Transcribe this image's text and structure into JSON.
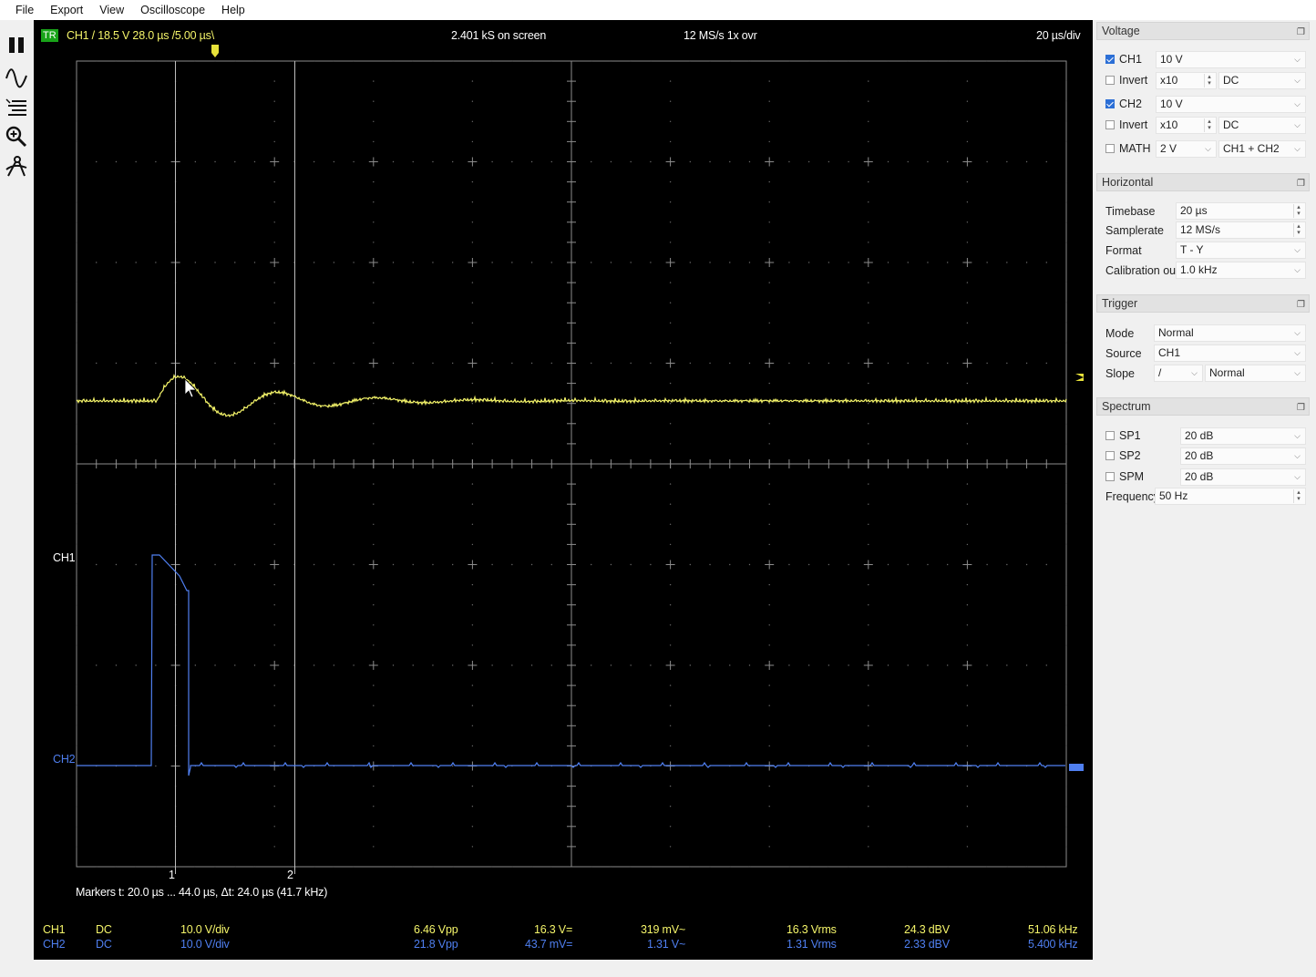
{
  "menu": [
    "File",
    "Export",
    "View",
    "Oscilloscope",
    "Help"
  ],
  "toolbar": {
    "icons": [
      "pause-icon",
      "waveform-icon",
      "lines-icon",
      "zoom-icon",
      "measure-icon"
    ]
  },
  "scope": {
    "trigger_badge": "TR",
    "trigger_info": "CH1  /  18.5 V  28.0 µs  /5.00 µs\\",
    "samples_on_screen": "2.401 kS on screen",
    "samplerate_info": "12 MS/s 1x ovr",
    "timebase_info": "20 µs/div",
    "ch1_label": "CH1",
    "ch2_label": "CH2",
    "marker1": "1",
    "marker2": "2",
    "markers_text": "Markers   t: 20.0 µs ... 44.0 µs,  Δt: 24.0 µs (41.7 kHz)",
    "colors": {
      "ch1": "#f5f56a",
      "ch2": "#4f7ff0",
      "grid": "#8c8c8c",
      "trigger_badge": "#19a319"
    }
  },
  "measurements": {
    "ch1": {
      "name": "CH1",
      "coupling": "DC",
      "vdiv": "10.0 V/div",
      "vpp": "6.46 Vpp",
      "vdc": "16.3 V=",
      "vac": "319 mV~",
      "vrms": "16.3 Vrms",
      "dbv": "24.3 dBV",
      "freq": "51.06 kHz"
    },
    "ch2": {
      "name": "CH2",
      "coupling": "DC",
      "vdiv": "10.0 V/div",
      "vpp": "21.8 Vpp",
      "vdc": "43.7 mV=",
      "vac": "1.31 V~",
      "vrms": "1.31 Vrms",
      "dbv": "2.33 dBV",
      "freq": "5.400 kHz"
    }
  },
  "panel": {
    "voltage": {
      "title": "Voltage",
      "ch1": {
        "label": "CH1",
        "checked": true,
        "range": "10 V",
        "invert_label": "Invert",
        "probe": "x10",
        "coupling": "DC"
      },
      "ch2": {
        "label": "CH2",
        "checked": true,
        "range": "10 V",
        "invert_label": "Invert",
        "probe": "x10",
        "coupling": "DC"
      },
      "math": {
        "label": "MATH",
        "checked": false,
        "range": "2 V",
        "mode": "CH1 + CH2"
      }
    },
    "horizontal": {
      "title": "Horizontal",
      "timebase_label": "Timebase",
      "timebase": "20 µs",
      "samplerate_label": "Samplerate",
      "samplerate": "12 MS/s",
      "format_label": "Format",
      "format": "T - Y",
      "calibration_label": "Calibration out",
      "calibration": "1.0 kHz"
    },
    "trigger": {
      "title": "Trigger",
      "mode_label": "Mode",
      "mode": "Normal",
      "source_label": "Source",
      "source": "CH1",
      "slope_label": "Slope",
      "slope": "/",
      "slope_mode": "Normal"
    },
    "spectrum": {
      "title": "Spectrum",
      "sp1": {
        "label": "SP1",
        "value": "20 dB"
      },
      "sp2": {
        "label": "SP2",
        "value": "20 dB"
      },
      "spm": {
        "label": "SPM",
        "value": "20 dB"
      },
      "freqbase_label": "Frequencybase",
      "freqbase": "50 Hz"
    }
  }
}
